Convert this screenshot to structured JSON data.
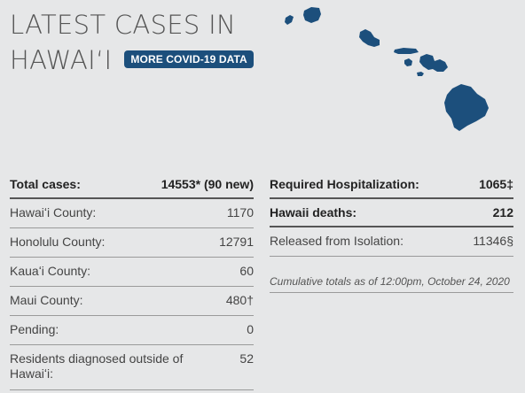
{
  "header": {
    "title_line1": "LATEST CASES IN",
    "title_line2": "HAWAIʻI",
    "more_button": "MORE COVID-19 DATA"
  },
  "colors": {
    "background": "#e6e7e8",
    "accent": "#1c4f7c",
    "map_fill": "#1c4f7c"
  },
  "map": {
    "icon": "hawaii-islands-map"
  },
  "left_rows": [
    {
      "label": "Total cases:",
      "value": "14553* (90 new)",
      "bold": true
    },
    {
      "label": "Hawaiʻi County:",
      "value": "1170"
    },
    {
      "label": "Honolulu County:",
      "value": "12791"
    },
    {
      "label": "Kauaʻi County:",
      "value": "60"
    },
    {
      "label": "Maui County:",
      "value": "480†"
    },
    {
      "label": "Pending:",
      "value": "0"
    },
    {
      "label": "Residents diagnosed outside of Hawaiʻi:",
      "value": "52"
    }
  ],
  "right_rows": [
    {
      "label": "Required Hospitalization:",
      "value": "1065‡",
      "bold": true
    },
    {
      "label": "Hawaii deaths:",
      "value": "212",
      "bold": true
    },
    {
      "label": "Released from Isolation:",
      "value": "11346§"
    }
  ],
  "note": "Cumulative totals as of 12:00pm, October 24, 2020"
}
